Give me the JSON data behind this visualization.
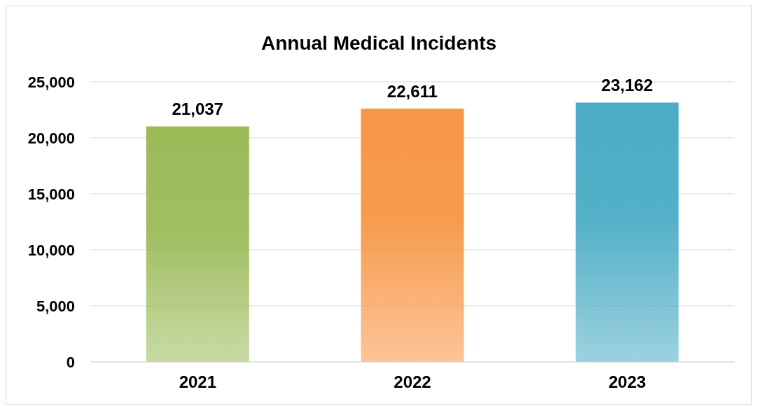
{
  "chart_data": {
    "type": "bar",
    "title": "Annual Medical Incidents",
    "categories": [
      "2021",
      "2022",
      "2023"
    ],
    "values": [
      21037,
      22611,
      23162
    ],
    "colors": [
      "#9bbb59",
      "#f79646",
      "#4bacc6"
    ],
    "ylim": [
      0,
      25000
    ],
    "yticks": [
      {
        "value": 0,
        "label": "0"
      },
      {
        "value": 5000,
        "label": "5,000"
      },
      {
        "value": 10000,
        "label": "10,000"
      },
      {
        "value": 15000,
        "label": "15,000"
      },
      {
        "value": 20000,
        "label": "20,000"
      },
      {
        "value": 25000,
        "label": "25,000"
      }
    ],
    "value_labels": [
      "21,037",
      "22,611",
      "23,162"
    ],
    "grid": "y"
  }
}
